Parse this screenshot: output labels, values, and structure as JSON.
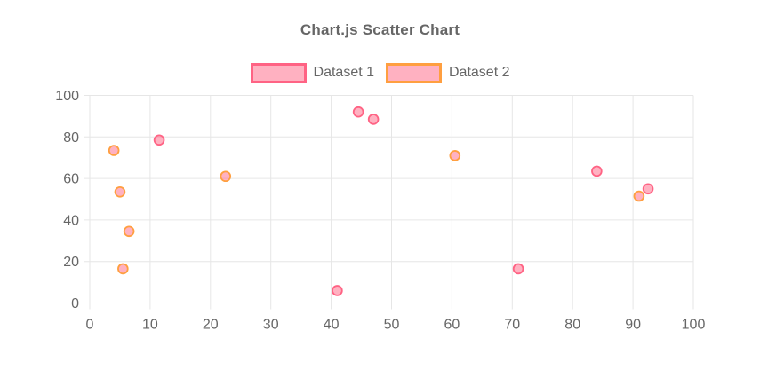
{
  "chart_data": {
    "type": "scatter",
    "title": "Chart.js Scatter Chart",
    "legend_position": "top",
    "grid": true,
    "x_axis": {
      "min": 0,
      "max": 100,
      "tick_step": 10,
      "ticks": [
        0,
        10,
        20,
        30,
        40,
        50,
        60,
        70,
        80,
        90,
        100
      ]
    },
    "y_axis": {
      "min": 0,
      "max": 100,
      "tick_step": 20,
      "ticks": [
        0,
        20,
        40,
        60,
        80,
        100
      ]
    },
    "series": [
      {
        "name": "Dataset 1",
        "border_color": "#FF6384",
        "fill_color": "rgba(255,99,132,0.5)",
        "points": [
          {
            "x": 11.5,
            "y": 78.5
          },
          {
            "x": 41,
            "y": 6
          },
          {
            "x": 44.5,
            "y": 92
          },
          {
            "x": 47,
            "y": 88.5
          },
          {
            "x": 71,
            "y": 16.5
          },
          {
            "x": 84,
            "y": 63.5
          },
          {
            "x": 92.5,
            "y": 55
          }
        ]
      },
      {
        "name": "Dataset 2",
        "border_color": "#FF9F40",
        "fill_color": "rgba(255,99,132,0.5)",
        "points": [
          {
            "x": 4,
            "y": 73.5
          },
          {
            "x": 5,
            "y": 53.5
          },
          {
            "x": 6.5,
            "y": 34.5
          },
          {
            "x": 5.5,
            "y": 16.5
          },
          {
            "x": 22.5,
            "y": 61
          },
          {
            "x": 60.5,
            "y": 71
          },
          {
            "x": 91,
            "y": 51.5
          }
        ]
      }
    ],
    "colors": {
      "grid": "#E6E6E6",
      "tick_text": "#666666",
      "title_text": "#666666"
    }
  }
}
